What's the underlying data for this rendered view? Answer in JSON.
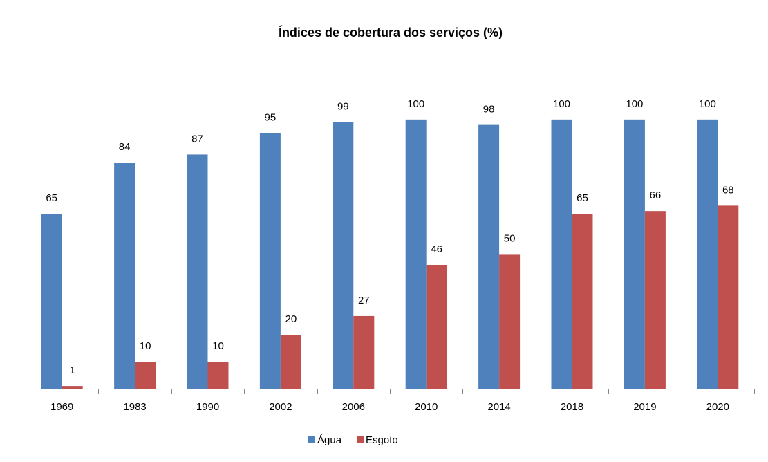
{
  "chart_data": {
    "type": "bar",
    "title": "Índices de cobertura dos serviços (%)",
    "categories": [
      "1969",
      "1983",
      "1990",
      "2002",
      "2006",
      "2010",
      "2014",
      "2018",
      "2019",
      "2020"
    ],
    "series": [
      {
        "name": "Água",
        "color": "#4f81bd",
        "values": [
          65,
          84,
          87,
          95,
          99,
          100,
          98,
          100,
          100,
          100
        ]
      },
      {
        "name": "Esgoto",
        "color": "#c0504d",
        "values": [
          1,
          10,
          10,
          20,
          27,
          46,
          50,
          65,
          66,
          68
        ]
      }
    ],
    "ylim": [
      0,
      120
    ],
    "legend": "bottom"
  }
}
